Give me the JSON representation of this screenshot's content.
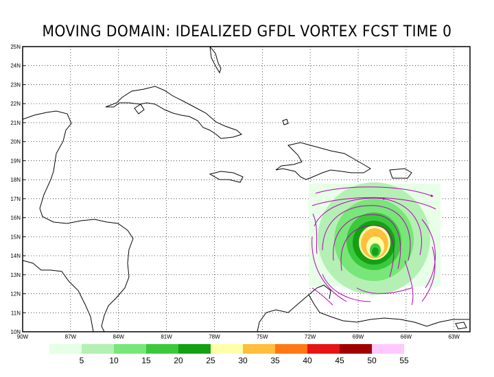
{
  "title": "MOVING DOMAIN: IDEALIZED GFDL VORTEX FCST TIME 0",
  "latitude_labels": [
    "25N",
    "24N",
    "23N",
    "22N",
    "21N",
    "20N",
    "19N",
    "18N",
    "17N",
    "16N",
    "15N",
    "14N",
    "13N",
    "12N",
    "11N",
    "10N"
  ],
  "longitude_labels": [
    "90W",
    "87W",
    "84W",
    "81W",
    "78W",
    "75W",
    "72W",
    "69W",
    "66W",
    "63W"
  ],
  "colorbar": {
    "labels": [
      "5",
      "10",
      "15",
      "20",
      "25",
      "30",
      "35",
      "40",
      "45",
      "50",
      "55"
    ],
    "colors": [
      "#e6ffe6",
      "#b4f0b4",
      "#78e678",
      "#3cc83c",
      "#14a014",
      "#ffffaa",
      "#ffbe3c",
      "#ff7814",
      "#e61414",
      "#a00000",
      "#ffc8ff"
    ]
  },
  "vortex": {
    "center_lat": 14.2,
    "center_lon": -67.8,
    "streamline_color": "#b400b4"
  },
  "map_extent": {
    "lon": [
      -90,
      -62
    ],
    "lat": [
      10,
      25
    ]
  },
  "grid": "dotted"
}
